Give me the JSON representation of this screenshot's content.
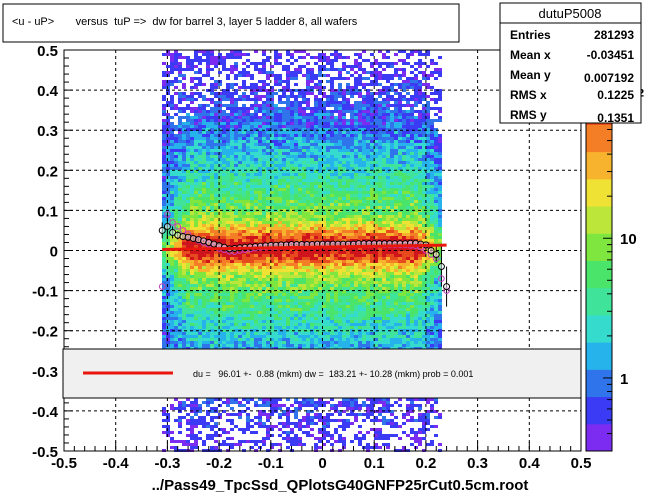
{
  "title": "<u - uP>       versus  tuP =>  dw for barrel 3, layer 5 ladder 8, all wafers",
  "footer": "../Pass49_TpcSsd_QPlotsG40GNFP25rCut0.5cm.root",
  "stats": {
    "name": "dutuP5008",
    "rows": [
      {
        "label": "Entries",
        "value": "281293"
      },
      {
        "label": "Mean x",
        "value": "-0.03451"
      },
      {
        "label": "Mean y",
        "value": "0.007192"
      },
      {
        "label": "RMS x",
        "value": "0.1225"
      },
      {
        "label": "RMS y",
        "value": "0.1351"
      }
    ]
  },
  "fit_legend": "du =   96.01 +-  0.88 (mkm) dw =  183.21 +- 10.28 (mkm) prob = 0.001",
  "colorbar": {
    "labels": [
      {
        "text": "1",
        "value": 1
      },
      {
        "text": "10",
        "value": 10
      },
      {
        "text": "10",
        "value": 100,
        "sup": "2"
      }
    ],
    "colors": [
      "#7b2cf0",
      "#3b3bf5",
      "#2f74ea",
      "#26b2ea",
      "#35dccd",
      "#3fe39a",
      "#4ae46b",
      "#7fe640",
      "#bce73a",
      "#f0e135",
      "#f8b32e",
      "#f37e26",
      "#e74b1d",
      "#d0141c"
    ]
  },
  "chart_data": {
    "type": "heatmap",
    "title": "<u - uP>       versus  tuP =>  dw for barrel 3, layer 5 ladder 8, all wafers",
    "xlabel": "",
    "ylabel": "",
    "xlim": [
      -0.5,
      0.5
    ],
    "ylim": [
      -0.5,
      0.5
    ],
    "x_ticks": [
      -0.5,
      -0.4,
      -0.3,
      -0.2,
      -0.1,
      0,
      0.1,
      0.2,
      0.3,
      0.4,
      0.5
    ],
    "y_ticks": [
      -0.5,
      -0.4,
      -0.3,
      -0.2,
      -0.1,
      0,
      0.1,
      0.2,
      0.3,
      0.4,
      0.5
    ],
    "x_tick_labels": [
      "-0.5",
      "-0.4",
      "-0.3",
      "-0.2",
      "-0.1",
      "0",
      "0.1",
      "0.2",
      "0.3",
      "0.4",
      "0.5"
    ],
    "y_tick_labels": [
      "-0.5",
      "-0.4",
      "-0.3",
      "-0.2",
      "-0.1",
      "0",
      "0.1",
      "0.2",
      "0.3",
      "0.4",
      "0.5"
    ],
    "grid": true,
    "data_x_range": [
      -0.31,
      0.23
    ],
    "profile_black": {
      "x": [
        -0.31,
        -0.3,
        -0.29,
        -0.28,
        -0.27,
        -0.26,
        -0.25,
        -0.24,
        -0.23,
        -0.22,
        -0.21,
        -0.2,
        -0.19,
        -0.18,
        -0.17,
        -0.16,
        -0.15,
        -0.14,
        -0.13,
        -0.12,
        -0.11,
        -0.1,
        -0.09,
        -0.08,
        -0.07,
        -0.06,
        -0.05,
        -0.04,
        -0.03,
        -0.02,
        -0.01,
        0.0,
        0.01,
        0.02,
        0.03,
        0.04,
        0.05,
        0.06,
        0.07,
        0.08,
        0.09,
        0.1,
        0.11,
        0.12,
        0.13,
        0.14,
        0.15,
        0.16,
        0.17,
        0.18,
        0.19,
        0.2,
        0.21,
        0.22,
        0.23,
        0.24
      ],
      "y": [
        0.05,
        0.06,
        0.045,
        0.038,
        0.035,
        0.033,
        0.03,
        0.027,
        0.024,
        0.02,
        0.016,
        0.012,
        0.008,
        0.004,
        0.005,
        0.007,
        0.008,
        0.009,
        0.01,
        0.011,
        0.012,
        0.013,
        0.013,
        0.014,
        0.014,
        0.015,
        0.015,
        0.015,
        0.015,
        0.015,
        0.016,
        0.016,
        0.016,
        0.016,
        0.016,
        0.016,
        0.016,
        0.016,
        0.017,
        0.017,
        0.017,
        0.017,
        0.017,
        0.017,
        0.017,
        0.017,
        0.017,
        0.017,
        0.018,
        0.018,
        0.016,
        0.014,
        0.0,
        -0.01,
        -0.04,
        -0.09
      ],
      "err": [
        0.02,
        0.03,
        0.015,
        0.01,
        0.008,
        0.006,
        0.005,
        0.004,
        0.003,
        0.003,
        0.003,
        0.003,
        0.002,
        0.002,
        0.002,
        0.002,
        0.002,
        0.002,
        0.002,
        0.002,
        0.002,
        0.002,
        0.002,
        0.002,
        0.002,
        0.002,
        0.002,
        0.002,
        0.002,
        0.002,
        0.002,
        0.002,
        0.002,
        0.002,
        0.002,
        0.002,
        0.002,
        0.002,
        0.002,
        0.002,
        0.002,
        0.002,
        0.002,
        0.002,
        0.002,
        0.002,
        0.002,
        0.002,
        0.003,
        0.003,
        0.004,
        0.006,
        0.01,
        0.02,
        0.05,
        0.05
      ]
    },
    "profile_magenta": {
      "x": [
        -0.31,
        -0.3,
        -0.29,
        -0.28,
        -0.27,
        -0.26,
        -0.25,
        -0.24,
        -0.23,
        -0.22,
        -0.21,
        -0.2,
        -0.19,
        -0.18,
        -0.17,
        -0.16,
        -0.15,
        -0.14,
        -0.13,
        -0.12,
        -0.11,
        -0.1,
        -0.09,
        -0.08,
        -0.07,
        -0.06,
        -0.05,
        -0.04,
        -0.03,
        -0.02,
        -0.01,
        0.0,
        0.01,
        0.02,
        0.03,
        0.04,
        0.05,
        0.06,
        0.07,
        0.08,
        0.09,
        0.1,
        0.11,
        0.12,
        0.13,
        0.14,
        0.15,
        0.16,
        0.17,
        0.18,
        0.19,
        0.2,
        0.21,
        0.22,
        0.23,
        0.24
      ],
      "y": [
        -0.09,
        0.09,
        0.07,
        0.06,
        0.05,
        0.04,
        0.03,
        0.025,
        0.02,
        0.015,
        0.01,
        0.005,
        0.002,
        -0.002,
        -0.003,
        0.0,
        0.002,
        0.004,
        0.006,
        0.008,
        0.009,
        0.01,
        0.01,
        0.011,
        0.011,
        0.012,
        0.012,
        0.012,
        0.013,
        0.013,
        0.013,
        0.013,
        0.013,
        0.013,
        0.013,
        0.014,
        0.014,
        0.014,
        0.014,
        0.014,
        0.014,
        0.014,
        0.014,
        0.014,
        0.014,
        0.014,
        0.014,
        0.014,
        0.013,
        0.012,
        0.008,
        0.0,
        -0.01,
        -0.02,
        -0.07,
        -0.1
      ]
    },
    "fit_line": {
      "x": [
        -0.31,
        0.24
      ],
      "y": [
        0.0025,
        0.0133
      ]
    }
  }
}
